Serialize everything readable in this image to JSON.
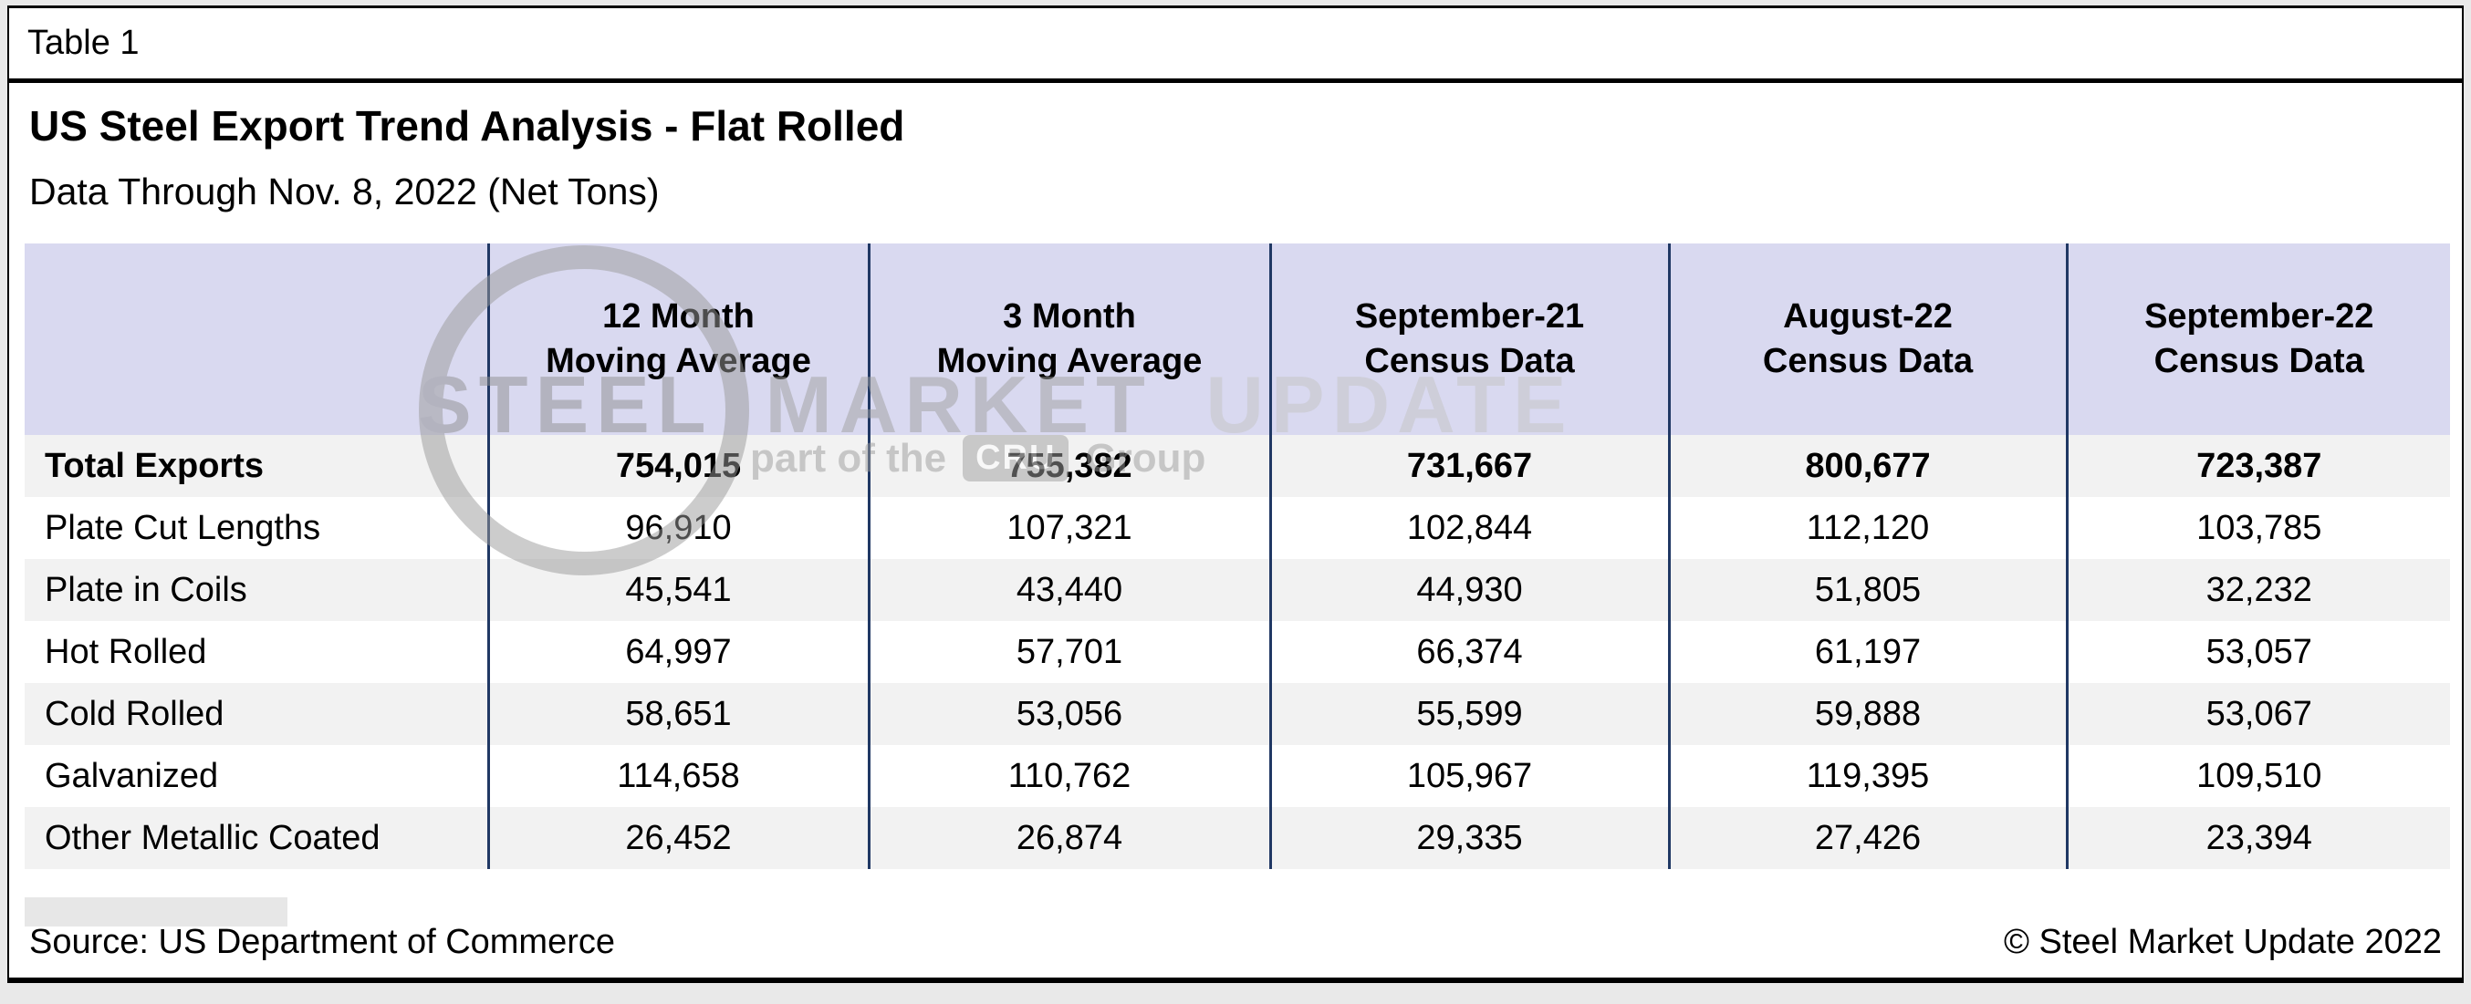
{
  "figure": {
    "label": "Table 1"
  },
  "header": {
    "title": "US Steel Export Trend Analysis - Flat Rolled",
    "subtitle": "Data Through Nov. 8, 2022 (Net Tons)"
  },
  "chart_data": {
    "type": "table",
    "units": "Net Tons",
    "columns": [
      {
        "line1": "",
        "line2": ""
      },
      {
        "line1": "12 Month",
        "line2": "Moving Average"
      },
      {
        "line1": "3 Month",
        "line2": "Moving Average"
      },
      {
        "line1": "September-21",
        "line2": "Census Data"
      },
      {
        "line1": "August-22",
        "line2": "Census Data"
      },
      {
        "line1": "September-22",
        "line2": "Census Data"
      }
    ],
    "rows": [
      {
        "label": "Total Exports",
        "bold": true,
        "values": [
          "754,015",
          "755,382",
          "731,667",
          "800,677",
          "723,387"
        ]
      },
      {
        "label": "Plate Cut Lengths",
        "bold": false,
        "values": [
          "96,910",
          "107,321",
          "102,844",
          "112,120",
          "103,785"
        ]
      },
      {
        "label": "Plate in Coils",
        "bold": false,
        "values": [
          "45,541",
          "43,440",
          "44,930",
          "51,805",
          "32,232"
        ]
      },
      {
        "label": "Hot Rolled",
        "bold": false,
        "values": [
          "64,997",
          "57,701",
          "66,374",
          "61,197",
          "53,057"
        ]
      },
      {
        "label": "Cold Rolled",
        "bold": false,
        "values": [
          "58,651",
          "53,056",
          "55,599",
          "59,888",
          "53,067"
        ]
      },
      {
        "label": "Galvanized",
        "bold": false,
        "values": [
          "114,658",
          "110,762",
          "105,967",
          "119,395",
          "109,510"
        ]
      },
      {
        "label": "Other Metallic Coated",
        "bold": false,
        "values": [
          "26,452",
          "26,874",
          "29,335",
          "27,426",
          "23,394"
        ]
      }
    ]
  },
  "watermark": {
    "words": [
      "STEEL",
      "MARKET",
      "UPDATE"
    ],
    "tagline_prefix": "part of the",
    "tagline_box": "CRU",
    "tagline_suffix": "Group"
  },
  "footer": {
    "source": "Source: US Department of Commerce",
    "copyright": "© Steel Market Update 2022"
  },
  "colors": {
    "header_fill": "#d9d9f0",
    "column_divider": "#203864",
    "row_stripe": "#f2f2f2",
    "page_background": "#e9e9e9"
  }
}
